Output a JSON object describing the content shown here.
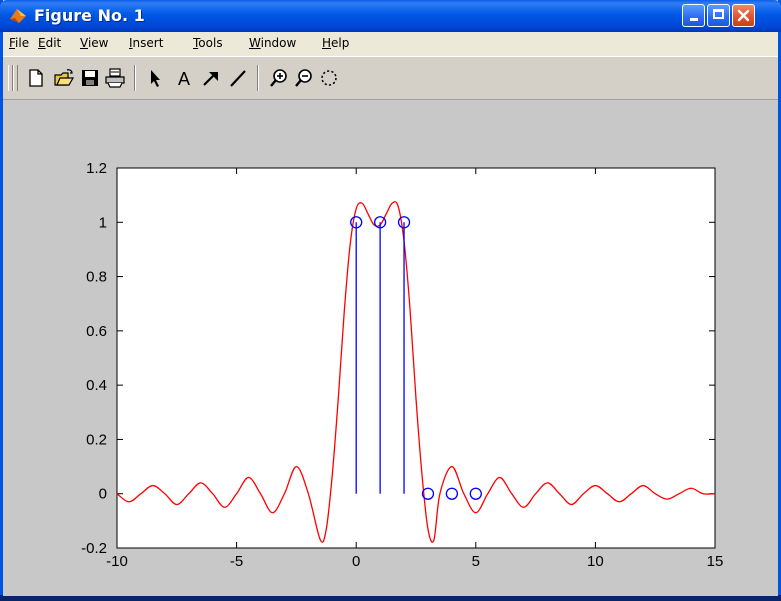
{
  "window": {
    "title": "Figure No. 1",
    "controls": {
      "minimize": "_",
      "maximize": "□",
      "close": "✕"
    }
  },
  "menubar": {
    "items": [
      {
        "label": "File",
        "mnemonic": "F",
        "rest": "ile"
      },
      {
        "label": "Edit",
        "mnemonic": "E",
        "rest": "dit"
      },
      {
        "label": "View",
        "mnemonic": "V",
        "rest": "iew"
      },
      {
        "label": "Insert",
        "mnemonic": "I",
        "rest": "nsert"
      },
      {
        "label": "Tools",
        "mnemonic": "T",
        "rest": "ools"
      },
      {
        "label": "Window",
        "mnemonic": "W",
        "rest": "indow"
      },
      {
        "label": "Help",
        "mnemonic": "H",
        "rest": "elp"
      }
    ]
  },
  "toolbar": {
    "buttons": [
      "new-icon",
      "open-icon",
      "save-icon",
      "print-icon",
      "select-arrow-icon",
      "text-icon",
      "arrow-icon",
      "line-icon",
      "zoom-in-icon",
      "zoom-out-icon",
      "rotate-icon"
    ],
    "text_button_label": "A"
  },
  "colors": {
    "curve": "#ff0000",
    "stems": "#0000ff",
    "axes_bg": "#ffffff",
    "figure_bg": "#c8c8c8"
  },
  "chart_data": {
    "type": "line",
    "title": "",
    "xlabel": "",
    "ylabel": "",
    "xlim": [
      -10,
      15
    ],
    "ylim": [
      -0.2,
      1.2
    ],
    "xticks": [
      -10,
      -5,
      0,
      5,
      10,
      15
    ],
    "yticks": [
      -0.2,
      0,
      0.2,
      0.4,
      0.6,
      0.8,
      1,
      1.2
    ],
    "grid": false,
    "series": [
      {
        "style": "line",
        "color": "#ff0000",
        "x": [
          -10,
          -9.5,
          -9,
          -8.5,
          -8,
          -7.5,
          -7,
          -6.5,
          -6,
          -5.5,
          -5,
          -4.5,
          -4,
          -3.5,
          -3,
          -2.5,
          -2,
          -1.5,
          -1.25,
          -1,
          -0.75,
          -0.5,
          -0.25,
          0,
          0.25,
          0.5,
          0.75,
          1,
          1.25,
          1.5,
          1.75,
          2,
          2.25,
          2.5,
          2.75,
          3,
          3.25,
          3.5,
          4,
          4.5,
          5,
          5.5,
          6,
          6.5,
          7,
          7.5,
          8,
          8.5,
          9,
          9.5,
          10,
          10.5,
          11,
          11.5,
          12,
          12.5,
          13,
          13.5,
          14,
          14.5,
          15
        ],
        "y": [
          0,
          -0.03,
          0.0,
          0.03,
          0.0,
          -0.04,
          0.0,
          0.04,
          0.0,
          -0.05,
          0.0,
          0.06,
          0.0,
          -0.07,
          0.0,
          0.1,
          0.0,
          -0.17,
          -0.13,
          0.07,
          0.35,
          0.67,
          0.92,
          1.05,
          1.07,
          1.03,
          0.99,
          0.99,
          1.03,
          1.07,
          1.06,
          0.93,
          0.68,
          0.35,
          0.07,
          -0.13,
          -0.17,
          0.0,
          0.1,
          0.0,
          -0.07,
          0.0,
          0.06,
          0.0,
          -0.05,
          0.0,
          0.04,
          0.0,
          -0.04,
          0.0,
          0.03,
          0.0,
          -0.03,
          0.0,
          0.03,
          0.0,
          -0.02,
          0.0,
          0.02,
          0.0,
          0.0
        ]
      },
      {
        "style": "stem",
        "color": "#0000ff",
        "x": [
          0,
          1,
          2,
          3,
          4,
          5
        ],
        "y": [
          1,
          1,
          1,
          0,
          0,
          0
        ]
      }
    ]
  }
}
